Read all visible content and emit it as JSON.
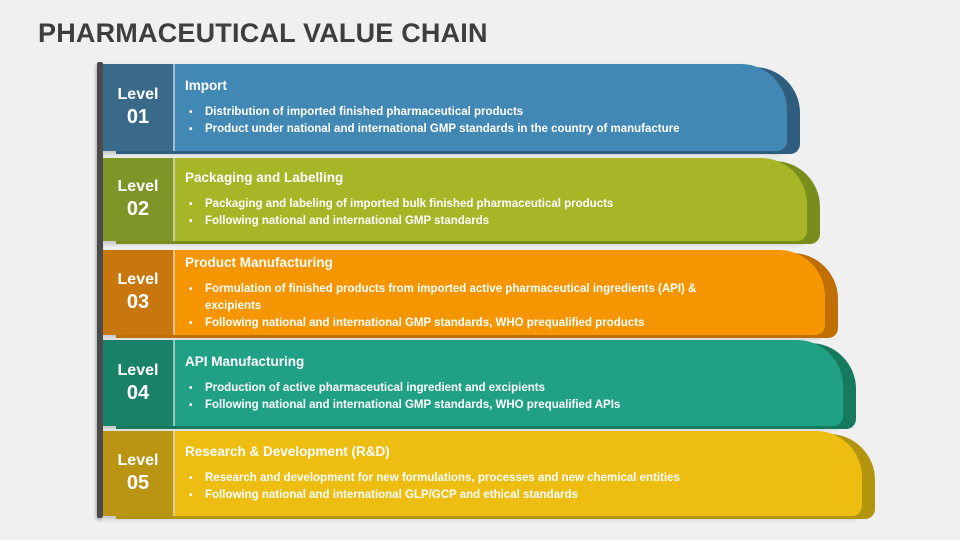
{
  "title": "PHARMACEUTICAL VALUE CHAIN",
  "theme": {
    "background": "#f0f0f1",
    "title_color": "#3e3e3e",
    "spine_color": "#4a4a4a",
    "text_color": "#ffffff"
  },
  "levels": [
    {
      "label": "Level",
      "number": "01",
      "heading": "Import",
      "bullets": [
        "Distribution of imported finished pharmaceutical products",
        "Product under national and international GMP standards in the country of manufacture"
      ],
      "colors": {
        "body": "#4288b5",
        "tab": "#396a8a",
        "fold": "#2f5d7d"
      }
    },
    {
      "label": "Level",
      "number": "02",
      "heading": "Packaging and Labelling",
      "bullets": [
        "Packaging and labeling of imported bulk finished pharmaceutical products",
        "Following national and international GMP standards"
      ],
      "colors": {
        "body": "#a6b626",
        "tab": "#7e9527",
        "fold": "#798d1c"
      }
    },
    {
      "label": "Level",
      "number": "03",
      "heading": "Product Manufacturing",
      "bullets": [
        "Formulation of finished products from imported active pharmaceutical ingredients (API) & excipients",
        "Following national and international GMP standards, WHO prequalified products"
      ],
      "colors": {
        "body": "#f59600",
        "tab": "#c7770e",
        "fold": "#bf6f04"
      }
    },
    {
      "label": "Level",
      "number": "04",
      "heading": "API Manufacturing",
      "bullets": [
        "Production of active pharmaceutical ingredient and excipients",
        "Following national and international GMP standards, WHO prequalified APIs"
      ],
      "colors": {
        "body": "#20a185",
        "tab": "#1a8169",
        "fold": "#157a5e"
      }
    },
    {
      "label": "Level",
      "number": "05",
      "heading": "Research & Development (R&D)",
      "bullets": [
        "Research and development for new formulations, processes and new chemical entities",
        "Following national and international GLP/GCP and ethical standards"
      ],
      "colors": {
        "body": "#edbd12",
        "tab": "#ba9513",
        "fold": "#b2950c"
      }
    }
  ]
}
